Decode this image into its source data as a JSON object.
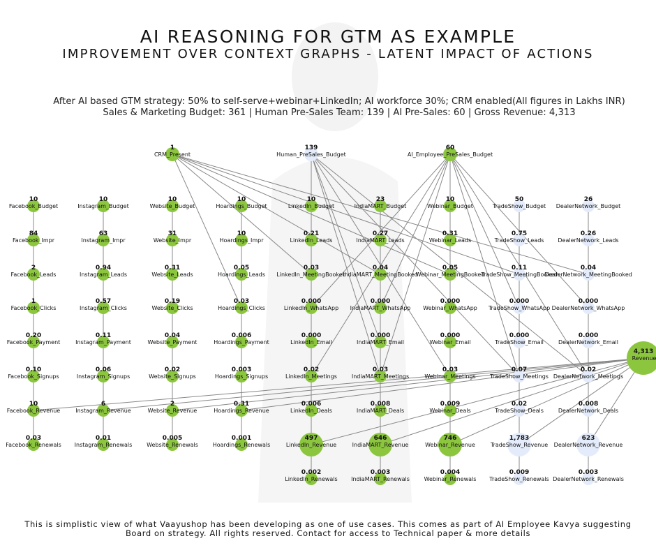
{
  "title": "AI REASONING FOR GTM AS EXAMPLE",
  "subtitle": "IMPROVEMENT OVER CONTEXT GRAPHS - LATENT IMPACT OF ACTIONS",
  "summary_line1": "After AI based GTM strategy: 50% to self-serve+webinar+LinkedIn; AI workforce 30%; CRM enabled(All figures in Lakhs INR)",
  "summary_line2": "Sales & Marketing Budget: 361 | Human Pre-Sales Team: 139 | AI Pre-Sales: 60 | Gross Revenue: 4,313",
  "footer_line1": "This is simplistic view of what Vaayushop has been developing as one of use cases. This comes as part of AI Employee Kavya suggesting",
  "footer_line2": "Board on strategy. All rights reserved. Contact for access to Technical paper & more details",
  "colors": {
    "green": "#8cc63f",
    "pale_blue": "#e4ecfb",
    "edge": "#888888"
  },
  "top_nodes": [
    {
      "id": "crm",
      "label": "CRM_Present",
      "value": "1",
      "color": "green"
    },
    {
      "id": "human",
      "label": "Human_PreSales_Budget",
      "value": "139",
      "color": "pale_blue"
    },
    {
      "id": "ai",
      "label": "AI_Employee_PreSales_Budget",
      "value": "60",
      "color": "green"
    }
  ],
  "revenue_node": {
    "id": "rev",
    "label": "Revenue",
    "value": "4,313",
    "color": "green"
  },
  "channels": [
    {
      "name": "Facebook",
      "color": "green",
      "nodes": [
        {
          "label": "Facebook_Budget",
          "value": "10"
        },
        {
          "label": "Facebook_Impr",
          "value": "84"
        },
        {
          "label": "Facebook_Leads",
          "value": "2"
        },
        {
          "label": "Facebook_Clicks",
          "value": "1"
        },
        {
          "label": "Facebook_Payment",
          "value": "0.20"
        },
        {
          "label": "Facebook_Signups",
          "value": "0.10"
        },
        {
          "label": "Facebook_Revenue",
          "value": "10"
        },
        {
          "label": "Facebook_Renewals",
          "value": "0.03"
        }
      ]
    },
    {
      "name": "Instagram",
      "color": "green",
      "nodes": [
        {
          "label": "Instagram_Budget",
          "value": "10"
        },
        {
          "label": "Instagram_Impr",
          "value": "63"
        },
        {
          "label": "Instagram_Leads",
          "value": "0.94"
        },
        {
          "label": "Instagram_Clicks",
          "value": "0.57"
        },
        {
          "label": "Instagram_Payment",
          "value": "0.11"
        },
        {
          "label": "Instagram_Signups",
          "value": "0.06"
        },
        {
          "label": "Instagram_Revenue",
          "value": "6"
        },
        {
          "label": "Instagram_Renewals",
          "value": "0.01"
        }
      ]
    },
    {
      "name": "Website",
      "color": "green",
      "nodes": [
        {
          "label": "Website_Budget",
          "value": "10"
        },
        {
          "label": "Website_Impr",
          "value": "31"
        },
        {
          "label": "Website_Leads",
          "value": "0.31"
        },
        {
          "label": "Website_Clicks",
          "value": "0.19"
        },
        {
          "label": "Website_Payment",
          "value": "0.04"
        },
        {
          "label": "Website_Signups",
          "value": "0.02"
        },
        {
          "label": "Website_Revenue",
          "value": "2"
        },
        {
          "label": "Website_Renewals",
          "value": "0.005"
        }
      ]
    },
    {
      "name": "Hoardings",
      "color": "green",
      "nodes": [
        {
          "label": "Hoardings_Budget",
          "value": "10"
        },
        {
          "label": "Hoardings_Impr",
          "value": "10"
        },
        {
          "label": "Hoardings_Leads",
          "value": "0.05"
        },
        {
          "label": "Hoardings_Clicks",
          "value": "0.03"
        },
        {
          "label": "Hoardings_Payment",
          "value": "0.006"
        },
        {
          "label": "Hoardings_Signups",
          "value": "0.003"
        },
        {
          "label": "Hoardings_Revenue",
          "value": "0.31"
        },
        {
          "label": "Hoardings_Renewals",
          "value": "0.001"
        }
      ]
    },
    {
      "name": "LinkedIn",
      "color": "green",
      "nodes": [
        {
          "label": "LinkedIn_Budget",
          "value": "10"
        },
        {
          "label": "LinkedIn_Leads",
          "value": "0.21"
        },
        {
          "label": "LinkedIn_MeetingBooked",
          "value": "0.03"
        },
        {
          "label": "LinkedIn_WhatsApp",
          "value": "0.000"
        },
        {
          "label": "LinkedIn_Email",
          "value": "0.000"
        },
        {
          "label": "LinkedIn_Meetings",
          "value": "0.02"
        },
        {
          "label": "LinkedIn_Deals",
          "value": "0.006"
        },
        {
          "label": "LinkedIn_Revenue",
          "value": "497"
        },
        {
          "label": "LinkedIn_Renewals",
          "value": "0.002"
        }
      ]
    },
    {
      "name": "IndiaMART",
      "color": "green",
      "nodes": [
        {
          "label": "IndiaMART_Budget",
          "value": "23"
        },
        {
          "label": "IndiaMART_Leads",
          "value": "0.27"
        },
        {
          "label": "IndiaMART_MeetingBooked",
          "value": "0.04"
        },
        {
          "label": "IndiaMART_WhatsApp",
          "value": "0.000"
        },
        {
          "label": "IndiaMART_Email",
          "value": "0.000"
        },
        {
          "label": "IndiaMART_Meetings",
          "value": "0.03"
        },
        {
          "label": "IndiaMART_Deals",
          "value": "0.008"
        },
        {
          "label": "IndiaMART_Revenue",
          "value": "646"
        },
        {
          "label": "IndiaMART_Renewals",
          "value": "0.003"
        }
      ]
    },
    {
      "name": "Webinar",
      "color": "green",
      "nodes": [
        {
          "label": "Webinar_Budget",
          "value": "10"
        },
        {
          "label": "Webinar_Leads",
          "value": "0.31"
        },
        {
          "label": "Webinar_MeetingBooked",
          "value": "0.05"
        },
        {
          "label": "Webinar_WhatsApp",
          "value": "0.000"
        },
        {
          "label": "Webinar_Email",
          "value": "0.000"
        },
        {
          "label": "Webinar_Meetings",
          "value": "0.03"
        },
        {
          "label": "Webinar_Deals",
          "value": "0.009"
        },
        {
          "label": "Webinar_Revenue",
          "value": "746"
        },
        {
          "label": "Webinar_Renewals",
          "value": "0.004"
        }
      ]
    },
    {
      "name": "TradeShow",
      "color": "pale_blue",
      "nodes": [
        {
          "label": "TradeShow_Budget",
          "value": "50"
        },
        {
          "label": "TradeShow_Leads",
          "value": "0.75"
        },
        {
          "label": "TradeShow_MeetingBooked",
          "value": "0.11"
        },
        {
          "label": "TradeShow_WhatsApp",
          "value": "0.000"
        },
        {
          "label": "TradeShow_Email",
          "value": "0.000"
        },
        {
          "label": "TradeShow_Meetings",
          "value": "0.07"
        },
        {
          "label": "TradeShow_Deals",
          "value": "0.02"
        },
        {
          "label": "TradeShow_Revenue",
          "value": "1,783"
        },
        {
          "label": "TradeShow_Renewals",
          "value": "0.009"
        }
      ]
    },
    {
      "name": "DealerNetwork",
      "color": "pale_blue",
      "nodes": [
        {
          "label": "DealerNetwork_Budget",
          "value": "26"
        },
        {
          "label": "DealerNetwork_Leads",
          "value": "0.26"
        },
        {
          "label": "DealerNetwork_MeetingBooked",
          "value": "0.04"
        },
        {
          "label": "DealerNetwork_WhatsApp",
          "value": "0.000"
        },
        {
          "label": "DealerNetwork_Email",
          "value": "0.000"
        },
        {
          "label": "DealerNetwork_Meetings",
          "value": "0.02"
        },
        {
          "label": "DealerNetwork_Deals",
          "value": "0.008"
        },
        {
          "label": "DealerNetwork_Revenue",
          "value": "623"
        },
        {
          "label": "DealerNetwork_Renewals",
          "value": "0.003"
        }
      ]
    }
  ]
}
